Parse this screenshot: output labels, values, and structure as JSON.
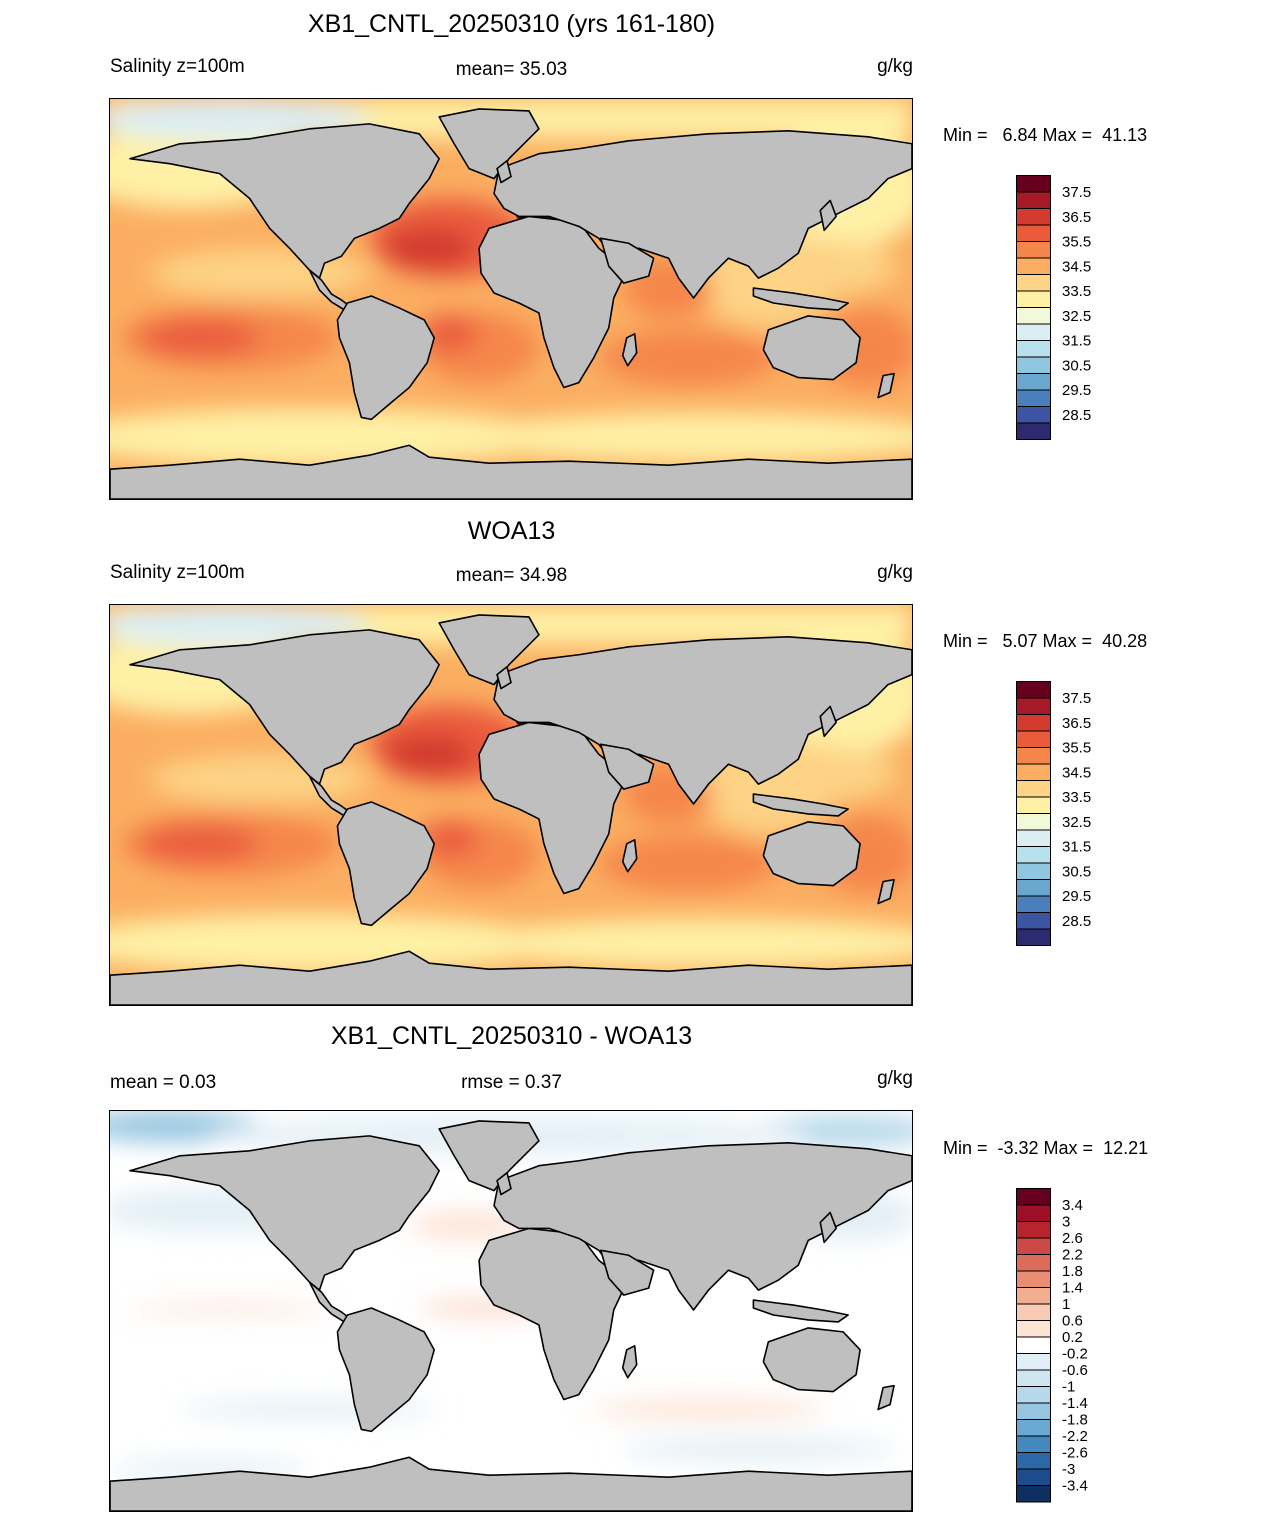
{
  "panels": [
    {
      "id": "model",
      "title": "XB1_CNTL_20250310 (yrs 161-180)",
      "left_label": "Salinity z=100m",
      "center_label": "mean=  35.03",
      "units": "g/kg",
      "minmax": "Min =   6.84 Max =  41.13",
      "colorbar": {
        "labels": [
          "37.5",
          "36.5",
          "35.5",
          "34.5",
          "33.5",
          "32.5",
          "31.5",
          "30.5",
          "29.5",
          "28.5"
        ],
        "colors": [
          "#67001f",
          "#a51a26",
          "#d33b2f",
          "#ea5b3c",
          "#f5864b",
          "#fbae61",
          "#fdd385",
          "#fef1a6",
          "#f1f9d8",
          "#dbeef4",
          "#b8e0ed",
          "#90c6df",
          "#6aa7cf",
          "#4a7fbb",
          "#3c55a3",
          "#2d2a70"
        ]
      },
      "map_style": "salinity"
    },
    {
      "id": "obs",
      "title": "WOA13",
      "left_label": "Salinity z=100m",
      "center_label": "mean=  34.98",
      "units": "g/kg",
      "minmax": "Min =   5.07 Max =  40.28",
      "colorbar": {
        "labels": [
          "37.5",
          "36.5",
          "35.5",
          "34.5",
          "33.5",
          "32.5",
          "31.5",
          "30.5",
          "29.5",
          "28.5"
        ],
        "colors": [
          "#67001f",
          "#a51a26",
          "#d33b2f",
          "#ea5b3c",
          "#f5864b",
          "#fbae61",
          "#fdd385",
          "#fef1a6",
          "#f1f9d8",
          "#dbeef4",
          "#b8e0ed",
          "#90c6df",
          "#6aa7cf",
          "#4a7fbb",
          "#3c55a3",
          "#2d2a70"
        ]
      },
      "map_style": "salinity"
    },
    {
      "id": "diff",
      "title": "XB1_CNTL_20250310 - WOA13",
      "left_label": "mean =   0.03",
      "center_label": "rmse =   0.37",
      "units": "g/kg",
      "minmax": "Min =  -3.32 Max =  12.21",
      "colorbar": {
        "labels": [
          "3.4",
          "3",
          "2.6",
          "2.2",
          "1.8",
          "1.4",
          "1",
          "0.6",
          "0.2",
          "-0.2",
          "-0.6",
          "-1",
          "-1.4",
          "-1.8",
          "-2.2",
          "-2.6",
          "-3",
          "-3.4"
        ],
        "colors": [
          "#67001f",
          "#9c0f26",
          "#b8242e",
          "#cc4a46",
          "#dc6b59",
          "#e98d73",
          "#f3ae92",
          "#f9cbb3",
          "#fde3d4",
          "#ffffff",
          "#e3eff6",
          "#cfe5f0",
          "#b6d8ea",
          "#95c5e0",
          "#6aa9d1",
          "#4388be",
          "#2a68a8",
          "#1c4c8c",
          "#0f2f62"
        ]
      },
      "map_style": "difference"
    }
  ]
}
